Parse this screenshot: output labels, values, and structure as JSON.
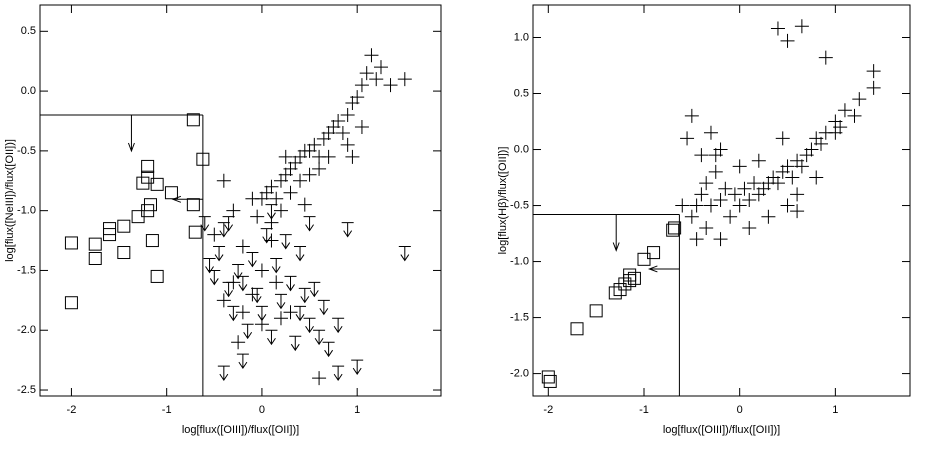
{
  "chart_data": [
    {
      "type": "scatter",
      "xlabel": "log[flux([OIII])/flux([OII])]",
      "ylabel": "log[flux([NeIII])/flux([OII])]",
      "xlim": [
        -2.33,
        1.88
      ],
      "ylim": [
        -2.55,
        0.72
      ],
      "xticks": [
        -2,
        -1,
        0,
        1
      ],
      "yticks": [
        0.5,
        {
          "value": 0,
          "label": "0.0"
        },
        -0.5,
        {
          "value": -1,
          "label": "-1.0"
        },
        -1.5,
        {
          "value": -2,
          "label": "-2.0"
        },
        -2.5
      ],
      "limit_x": -0.62,
      "limit_y": -0.2,
      "series": [
        {
          "marker": "square",
          "color": "#000000",
          "x": [
            -2,
            -2,
            -1.75,
            -1.75,
            -1.6,
            -1.6,
            -1.45,
            -1.45,
            -1.3,
            -1.25,
            -1.2,
            -1.2,
            -1.17,
            -1.2,
            -1.15,
            -1.1,
            -1.1,
            -0.95,
            -0.72,
            -0.7,
            -0.62,
            -0.72
          ],
          "values": [
            -1.27,
            -1.77,
            -1.28,
            -1.4,
            -1.2,
            -1.15,
            -1.13,
            -1.35,
            -1.05,
            -0.77,
            -0.63,
            -0.72,
            -0.95,
            -1.0,
            -1.25,
            -1.55,
            -0.78,
            -0.85,
            -0.95,
            -1.18,
            -0.57,
            -0.24
          ]
        },
        {
          "marker": "plus",
          "color": "#000000",
          "x": [
            0,
            0.05,
            0.1,
            0.15,
            0.2,
            0.25,
            0.3,
            0.35,
            0.4,
            0.45,
            0.5,
            0.55,
            0.6,
            0.65,
            0.7,
            0.75,
            0.8,
            0.85,
            0.9,
            0.95,
            1.0,
            1.05,
            1.1,
            1.2,
            1.15,
            1.25,
            1.5,
            1.35,
            0.9,
            0.95,
            0.3,
            0.2,
            0.1,
            -0.05,
            -0.1,
            0.45,
            0.5,
            0.4,
            0.6,
            0.7,
            0.25,
            -0.4,
            -0.3,
            -0.2,
            -0.3,
            -0.1,
            0,
            0.2,
            -0.4,
            -0.2,
            0.1,
            0.15,
            0.3,
            -0.5,
            0,
            -0.25,
            0.6,
            1.05
          ],
          "values": [
            -0.9,
            -0.85,
            -0.8,
            -0.9,
            -0.75,
            -0.7,
            -0.65,
            -0.6,
            -0.55,
            -0.5,
            -0.5,
            -0.45,
            -0.55,
            -0.4,
            -0.35,
            -0.3,
            -0.25,
            -0.35,
            -0.2,
            -0.1,
            -0.05,
            0.05,
            0.15,
            0.1,
            0.3,
            0.2,
            0.1,
            0.05,
            -0.45,
            -0.55,
            -0.85,
            -1.0,
            -1.1,
            -1.05,
            -0.9,
            -0.95,
            -0.7,
            -0.75,
            -0.65,
            -0.55,
            -0.55,
            -0.75,
            -1.0,
            -1.3,
            -1.6,
            -1.7,
            -1.5,
            -1.9,
            -1.75,
            -1.85,
            -1.25,
            -1.6,
            -1.85,
            -1.2,
            -1.95,
            -2.1,
            -2.4,
            -0.3
          ]
        },
        {
          "marker": "arrow",
          "color": "#000000",
          "x": [
            -0.6,
            -0.55,
            -0.5,
            -0.45,
            -0.4,
            -0.35,
            -0.3,
            -0.25,
            -0.2,
            -0.15,
            -0.1,
            -0.05,
            0,
            0.05,
            0.1,
            0.15,
            0.2,
            0.25,
            0.3,
            0.35,
            0.4,
            0.45,
            0.5,
            0.55,
            0.6,
            0.65,
            0.7,
            0.8,
            0.9,
            1.0,
            -0.2,
            -0.4,
            0.5,
            0.4,
            1.5,
            0.8,
            -0.35,
            0.1
          ],
          "values": [
            -1.05,
            -1.4,
            -1.5,
            -1.3,
            -1.1,
            -1.6,
            -1.8,
            -1.45,
            -1.55,
            -1.95,
            -1.35,
            -1.65,
            -1.8,
            -1.15,
            -2.0,
            -1.4,
            -1.7,
            -1.2,
            -1.55,
            -2.05,
            -1.8,
            -1.65,
            -1.9,
            -1.6,
            -2.0,
            -1.75,
            -2.1,
            -1.9,
            -1.1,
            -2.25,
            -2.2,
            -2.3,
            -1.05,
            -1.3,
            -1.3,
            -2.3,
            -1.05,
            -0.95
          ]
        }
      ]
    },
    {
      "type": "scatter",
      "xlabel": "log[flux([OIII])/flux([OII])]",
      "ylabel": "log[flux(Hβ)/flux([OII])]",
      "xlim": [
        -2.16,
        1.78
      ],
      "ylim": [
        -2.2,
        1.29
      ],
      "xticks": [
        -2,
        -1,
        0,
        1
      ],
      "yticks": [
        {
          "value": 1,
          "label": "1.0"
        },
        0.5,
        {
          "value": 0,
          "label": "0.0"
        },
        -0.5,
        {
          "value": -1,
          "label": "-1.0"
        },
        -1.5,
        {
          "value": -2,
          "label": "-2.0"
        }
      ],
      "limit_x": -0.63,
      "limit_y": -0.58,
      "series": [
        {
          "marker": "square",
          "color": "#000000",
          "x": [
            -2,
            -1.98,
            -1.7,
            -1.5,
            -1.3,
            -1.25,
            -1.2,
            -1.15,
            -1.15,
            -1.1,
            -1.0,
            -0.9,
            -0.7,
            -0.68
          ],
          "values": [
            -2.03,
            -2.07,
            -1.6,
            -1.44,
            -1.28,
            -1.25,
            -1.2,
            -1.17,
            -1.12,
            -1.15,
            -0.98,
            -0.92,
            -0.72,
            -0.7
          ]
        },
        {
          "marker": "plus",
          "color": "#000000",
          "x": [
            -0.6,
            -0.5,
            -0.45,
            -0.4,
            -0.35,
            -0.3,
            -0.25,
            -0.2,
            -0.15,
            -0.1,
            -0.05,
            0,
            0.05,
            0.1,
            0.15,
            0.2,
            0.25,
            0.3,
            0.35,
            0.4,
            0.45,
            0.5,
            0.55,
            0.6,
            0.65,
            0.7,
            0.75,
            0.8,
            0.85,
            0.9,
            1.0,
            1.05,
            1.1,
            1.2,
            1.25,
            1.4,
            1.4,
            -0.55,
            -0.5,
            -0.3,
            -0.25,
            -0.4,
            0,
            0.2,
            0.45,
            0.5,
            0.6,
            0.3,
            0.1,
            -0.2,
            -0.35,
            0.4,
            0.5,
            0.65,
            0.9,
            1.0,
            0.8,
            0.6,
            -0.45,
            -0.2
          ],
          "values": [
            -0.5,
            -0.6,
            -0.8,
            -0.4,
            -0.3,
            -0.5,
            -0.2,
            -0.45,
            -0.35,
            -0.6,
            -0.4,
            -0.5,
            -0.35,
            -0.45,
            -0.3,
            -0.4,
            -0.35,
            -0.3,
            -0.25,
            -0.3,
            -0.2,
            -0.15,
            -0.25,
            -0.1,
            -0.15,
            -0.05,
            0,
            0.1,
            0.05,
            0.15,
            0.25,
            0.2,
            0.35,
            0.3,
            0.45,
            0.7,
            0.55,
            0.1,
            0.3,
            0.15,
            -0.05,
            -0.05,
            -0.15,
            -0.1,
            0.1,
            -0.5,
            -0.4,
            -0.6,
            -0.7,
            -0.8,
            -0.7,
            1.08,
            0.97,
            1.1,
            0.82,
            0.15,
            -0.25,
            -0.55,
            -0.5,
            0
          ]
        }
      ]
    }
  ]
}
